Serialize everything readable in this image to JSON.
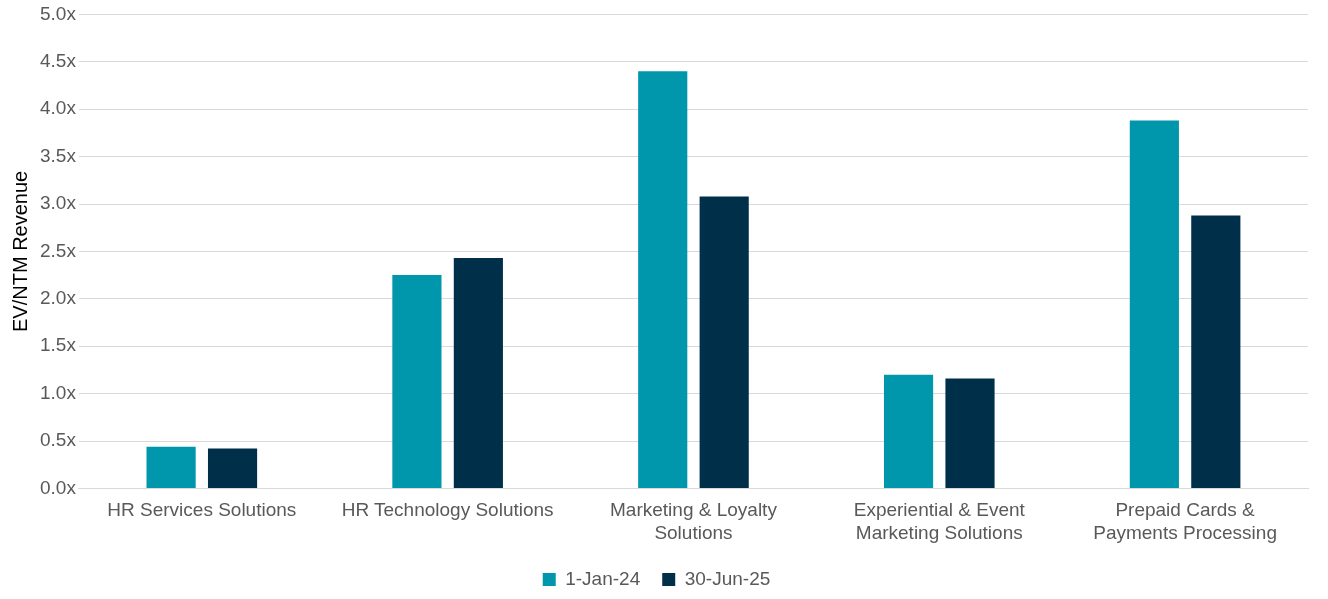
{
  "chart_data": {
    "type": "bar",
    "ylabel": "EV/NTM Revenue",
    "categories": [
      "HR Services Solutions",
      "HR Technology Solutions",
      "Marketing & Loyalty Solutions",
      "Experiential & Event Marketing Solutions",
      "Prepaid Cards & Payments Processing"
    ],
    "series": [
      {
        "name": "1-Jan-24",
        "color": "#0097ac",
        "values": [
          0.44,
          2.25,
          4.4,
          1.2,
          3.88
        ]
      },
      {
        "name": "30-Jun-25",
        "color": "#003049",
        "values": [
          0.42,
          2.43,
          3.08,
          1.16,
          2.88
        ]
      }
    ],
    "ylim": [
      0,
      5
    ],
    "yticks": [
      {
        "value": 0,
        "label": "0.0x"
      },
      {
        "value": 0.5,
        "label": "0.5x"
      },
      {
        "value": 1,
        "label": "1.0x"
      },
      {
        "value": 1.5,
        "label": "1.5x"
      },
      {
        "value": 2,
        "label": "2.0x"
      },
      {
        "value": 2.5,
        "label": "2.5x"
      },
      {
        "value": 3,
        "label": "3.0x"
      },
      {
        "value": 3.5,
        "label": "3.5x"
      },
      {
        "value": 4,
        "label": "4.0x"
      },
      {
        "value": 4.5,
        "label": "4.5x"
      },
      {
        "value": 5,
        "label": "5.0x"
      }
    ],
    "grid": "y",
    "legend": "bottom"
  }
}
